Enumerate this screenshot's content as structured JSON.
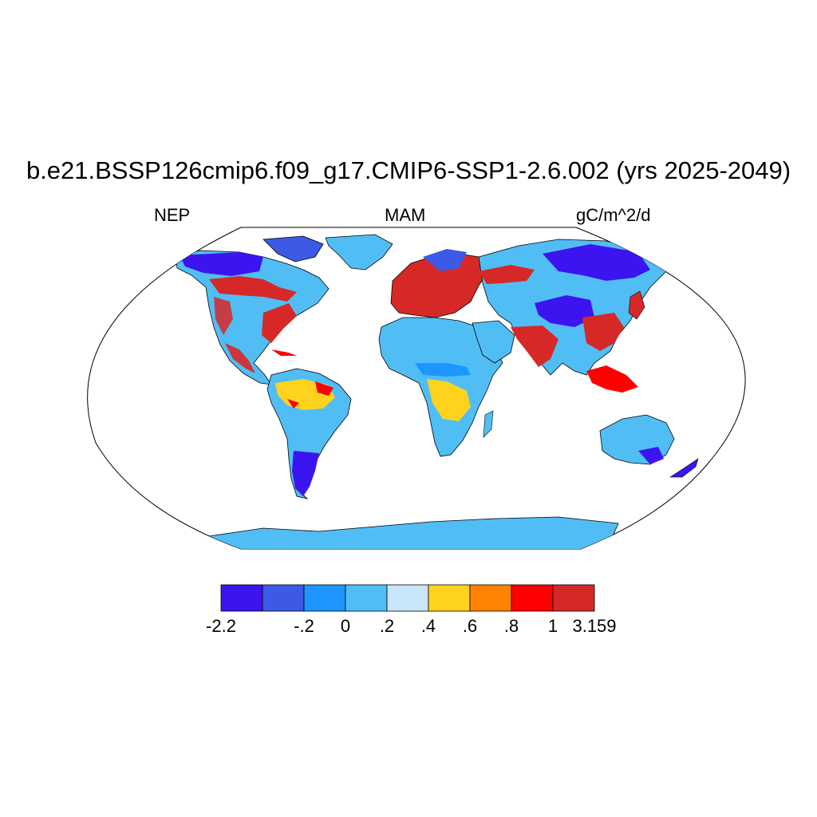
{
  "title": "b.e21.BSSP126cmip6.f09_g17.CMIP6-SSP1-2.6.002 (yrs 2025-2049)",
  "left_subtitle": "NEP",
  "center_subtitle": "MAM",
  "right_subtitle": "gC/m^2/d",
  "projection": "Robinson",
  "colorbar": {
    "colors": [
      "#3c14f0",
      "#3c5ae6",
      "#1e96ff",
      "#50bef5",
      "#c8e6fa",
      "#ffd21e",
      "#ff8200",
      "#ff0000",
      "#d72828"
    ],
    "labels": [
      "-2.2",
      "",
      "-.2",
      "0",
      ".2",
      ".4",
      ".6",
      ".8",
      "1",
      "3.159"
    ]
  },
  "ocean_color": "#ffffff",
  "coastline_color": "#000000"
}
